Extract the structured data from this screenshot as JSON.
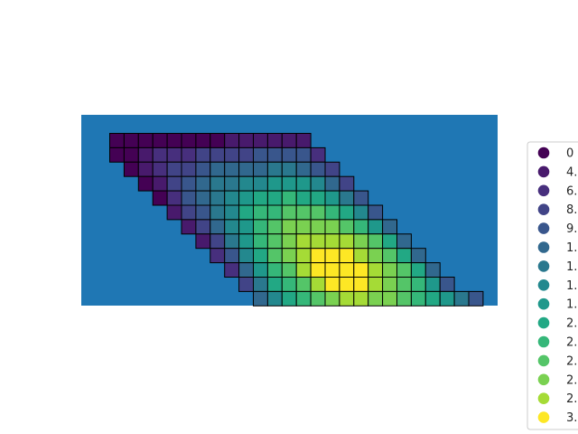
{
  "chart_data": {
    "type": "heatmap",
    "title": "",
    "xlabel": "",
    "ylabel": "",
    "axes_visible": false,
    "background_color": "#1f77b4",
    "cell_edge_color": "#000000",
    "colormap": "viridis",
    "grid": {
      "rows": 12,
      "cols": 26,
      "row_start_offset": [
        0,
        0,
        1,
        2,
        3,
        4,
        5,
        6,
        7,
        8,
        9,
        10
      ],
      "row_values": [
        [
          1,
          1,
          1,
          1,
          1,
          1,
          1,
          1,
          2,
          2,
          2,
          2,
          2,
          2
        ],
        [
          1,
          1,
          2,
          3,
          3,
          3,
          4,
          4,
          4,
          4,
          5,
          5,
          5,
          5,
          3
        ],
        [
          1,
          2,
          3,
          4,
          4,
          5,
          6,
          6,
          6,
          6,
          7,
          7,
          6,
          5,
          4
        ],
        [
          1,
          2,
          4,
          5,
          6,
          7,
          7,
          8,
          8,
          9,
          9,
          9,
          8,
          6,
          4
        ],
        [
          1,
          3,
          5,
          6,
          7,
          8,
          9,
          10,
          10,
          11,
          10,
          10,
          9,
          7,
          5
        ],
        [
          2,
          4,
          5,
          7,
          8,
          10,
          11,
          11,
          12,
          12,
          12,
          11,
          10,
          8,
          5
        ],
        [
          2,
          4,
          6,
          8,
          9,
          11,
          12,
          13,
          13,
          13,
          13,
          12,
          11,
          9,
          6
        ],
        [
          2,
          4,
          7,
          9,
          11,
          12,
          13,
          14,
          14,
          14,
          14,
          13,
          12,
          10,
          6
        ],
        [
          3,
          5,
          8,
          10,
          12,
          13,
          14,
          15,
          15,
          15,
          14,
          13,
          12,
          10,
          6
        ],
        [
          3,
          6,
          9,
          11,
          12,
          14,
          15,
          15,
          15,
          15,
          14,
          13,
          12,
          10,
          6
        ],
        [
          4,
          7,
          10,
          11,
          12,
          14,
          15,
          15,
          15,
          14,
          13,
          12,
          11,
          9,
          5
        ],
        [
          6,
          8,
          10,
          11,
          12,
          13,
          14,
          14,
          13,
          13,
          12,
          11,
          10,
          9,
          7,
          5
        ]
      ]
    },
    "legend": {
      "position": "right",
      "entries": [
        {
          "label": "0",
          "color": "#440154"
        },
        {
          "label": "4.",
          "color": "#481a6c"
        },
        {
          "label": "6.",
          "color": "#472f7d"
        },
        {
          "label": "8.",
          "color": "#414487"
        },
        {
          "label": "9.",
          "color": "#39568c"
        },
        {
          "label": "1.",
          "color": "#31688e"
        },
        {
          "label": "1.",
          "color": "#2a788e"
        },
        {
          "label": "1.",
          "color": "#23888e"
        },
        {
          "label": "1.",
          "color": "#1f988b"
        },
        {
          "label": "2.",
          "color": "#22a884"
        },
        {
          "label": "2.",
          "color": "#35b779"
        },
        {
          "label": "2.",
          "color": "#54c568"
        },
        {
          "label": "2.",
          "color": "#7ad151"
        },
        {
          "label": "2.",
          "color": "#a5db36"
        },
        {
          "label": "3.",
          "color": "#fde725"
        }
      ]
    }
  }
}
